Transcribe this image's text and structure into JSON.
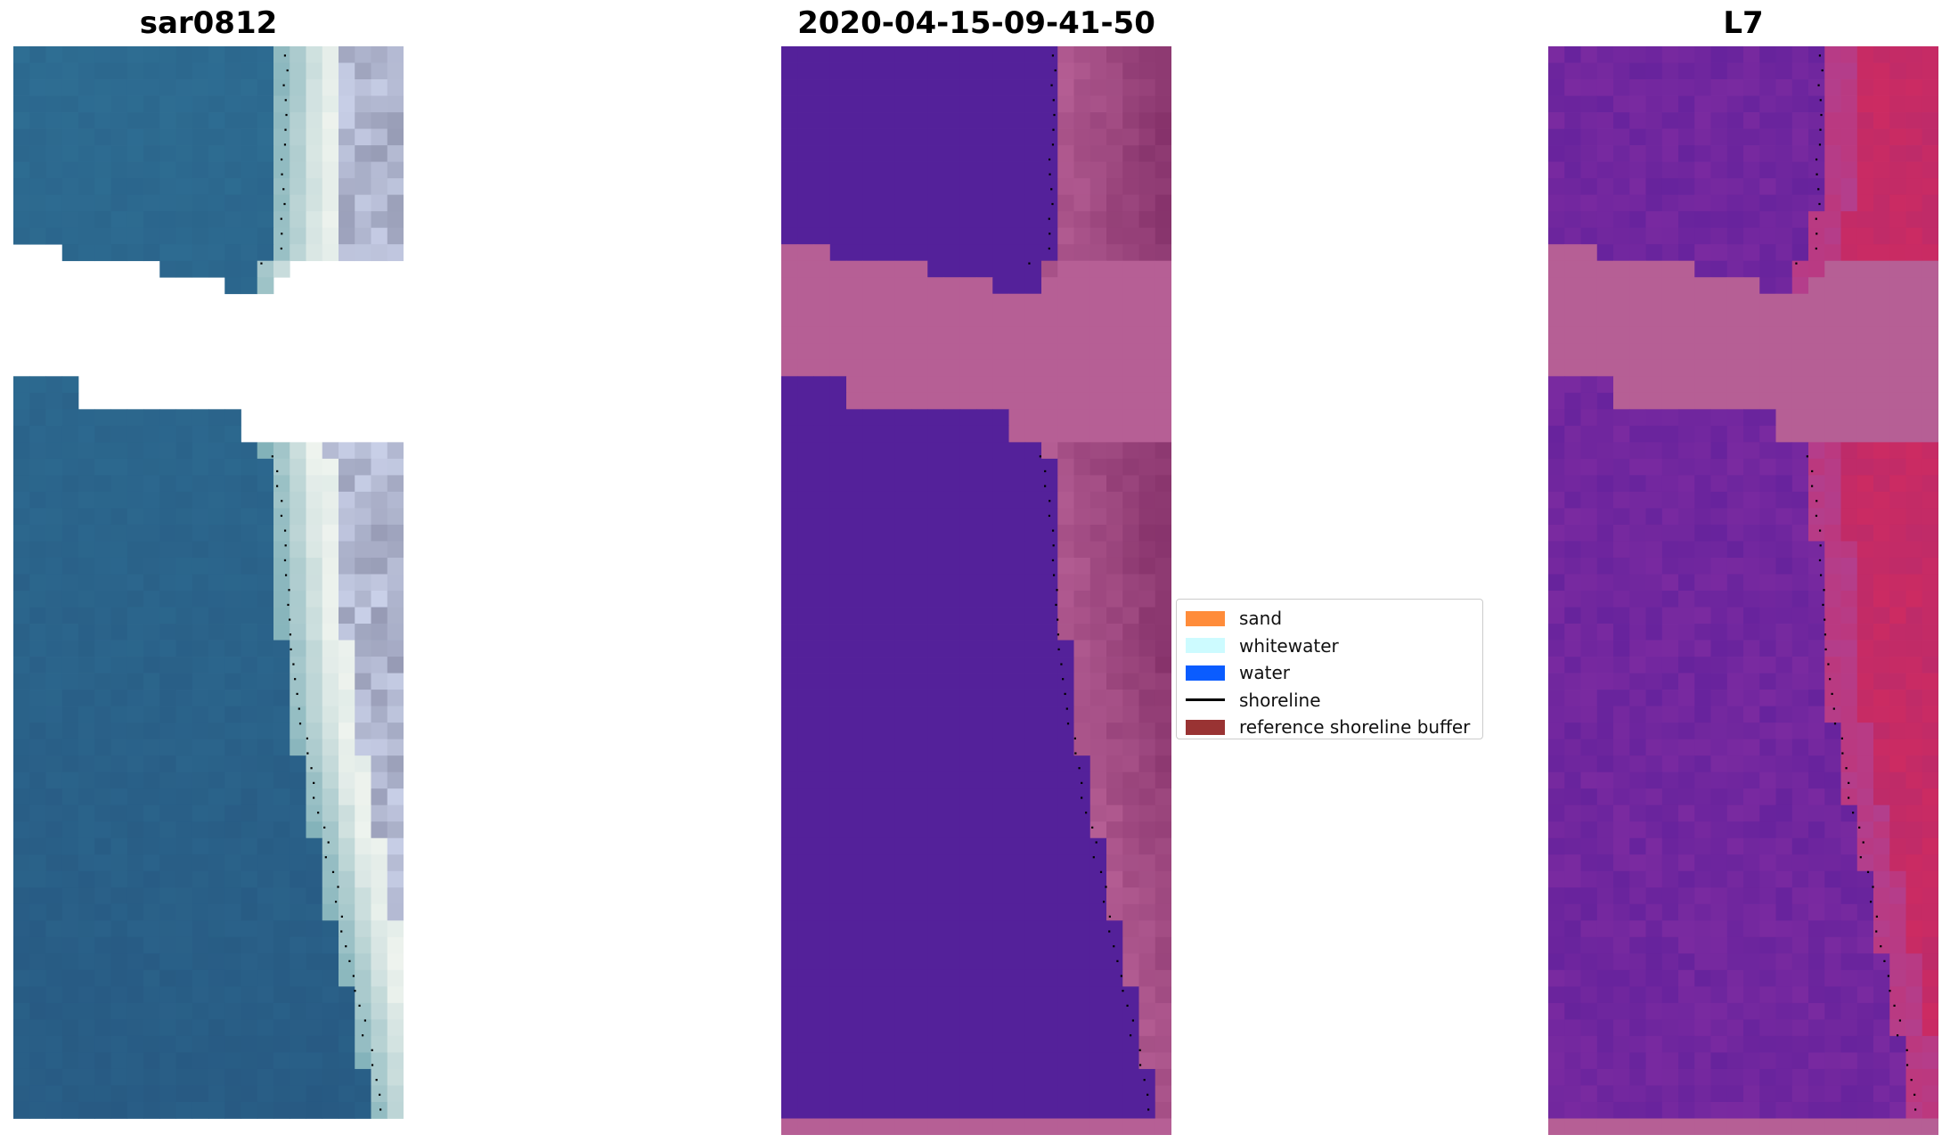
{
  "panels": [
    {
      "title": "sar0812",
      "kind": "rgb"
    },
    {
      "title": "2020-04-15-09-41-50",
      "kind": "classified"
    },
    {
      "title": "L7",
      "kind": "index"
    }
  ],
  "legend": {
    "items": [
      {
        "label": "sand",
        "color": "#ff8c3a",
        "type": "patch"
      },
      {
        "label": "whitewater",
        "color": "#cdfbff",
        "type": "patch"
      },
      {
        "label": "water",
        "color": "#0a5cff",
        "type": "patch"
      },
      {
        "label": "shoreline",
        "color": "#000000",
        "type": "line"
      },
      {
        "label": "reference shoreline buffer",
        "color": "#993333",
        "type": "patch"
      }
    ]
  },
  "colors": {
    "rgb_water": "#2e6e93",
    "class_water": "#54219a",
    "class_buffer": "#b65f95",
    "index_water": "#7a2aa0",
    "index_land": "#cc2b62"
  }
}
